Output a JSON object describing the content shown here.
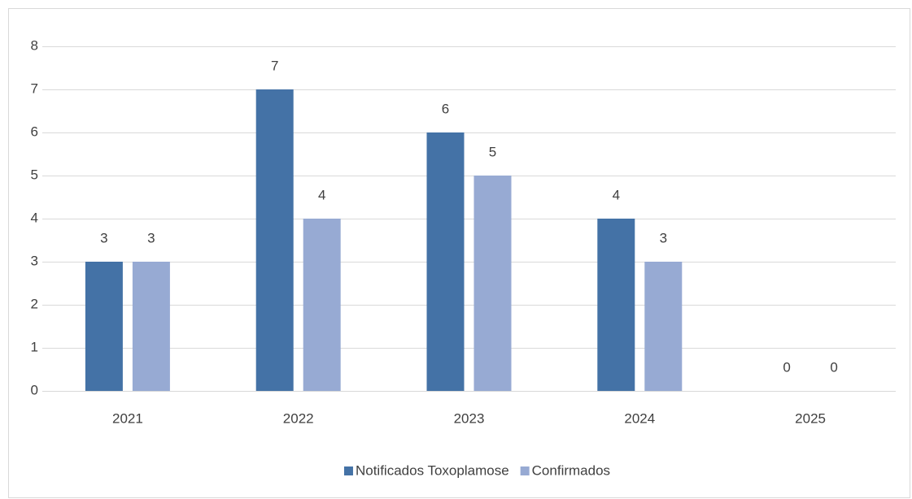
{
  "chart_data": {
    "type": "bar",
    "categories": [
      "2021",
      "2022",
      "2023",
      "2024",
      "2025"
    ],
    "series": [
      {
        "name": "Notificados Toxoplamose",
        "color": "#4472a6",
        "values": [
          3,
          7,
          6,
          4,
          0
        ]
      },
      {
        "name": "Confirmados",
        "color": "#97aad3",
        "values": [
          3,
          4,
          5,
          3,
          0
        ]
      }
    ],
    "ylim": [
      0,
      8
    ],
    "yticks": [
      0,
      1,
      2,
      3,
      4,
      5,
      6,
      7,
      8
    ],
    "grid": true,
    "legend": "bottom"
  }
}
